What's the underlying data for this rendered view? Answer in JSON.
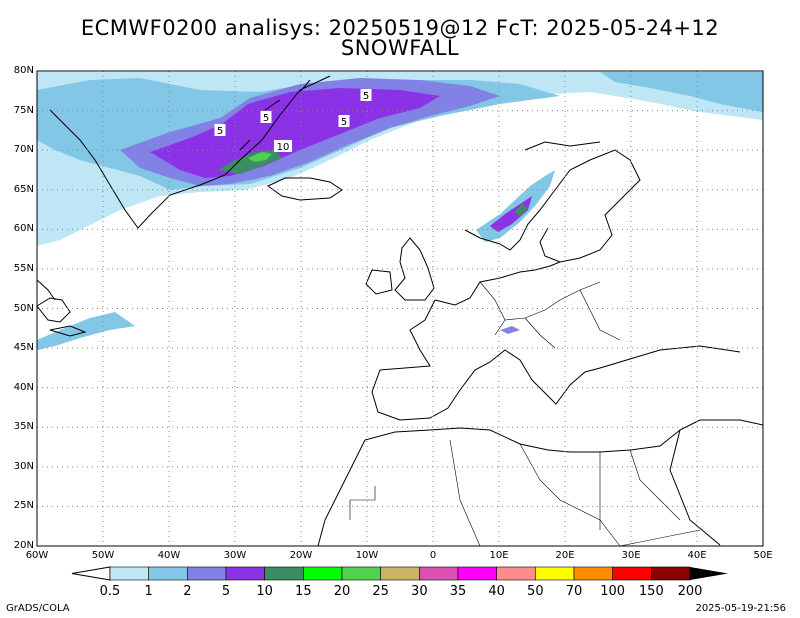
{
  "title_line1": "ECMWF0200 analisys: 20250519@12 FcT: 2025-05-24+12",
  "title_line2": "SNOWFALL",
  "lat_ticks": [
    "80N",
    "75N",
    "70N",
    "65N",
    "60N",
    "55N",
    "50N",
    "45N",
    "40N",
    "35N",
    "30N",
    "25N",
    "20N"
  ],
  "lon_ticks": [
    "60W",
    "50W",
    "40W",
    "30W",
    "20W",
    "10W",
    "0",
    "10E",
    "20E",
    "30E",
    "40E",
    "50E"
  ],
  "colorbar": {
    "labels": [
      "0.5",
      "1",
      "2",
      "5",
      "10",
      "15",
      "20",
      "25",
      "30",
      "35",
      "40",
      "50",
      "70",
      "100",
      "150",
      "200"
    ],
    "colors": [
      "#bee6f5",
      "#82c8e6",
      "#8282e6",
      "#8c32e6",
      "#3c8c64",
      "#00ff00",
      "#50d250",
      "#c8b464",
      "#dc50b4",
      "#ff00ff",
      "#ff8c8c",
      "#ffff00",
      "#ff8c00",
      "#ff0000",
      "#8c0000"
    ]
  },
  "contour_labels": [
    "5",
    "5",
    "5",
    "5",
    "10"
  ],
  "footer_left": "GrADS/COLA",
  "footer_right": "2025-05-19-21:56"
}
